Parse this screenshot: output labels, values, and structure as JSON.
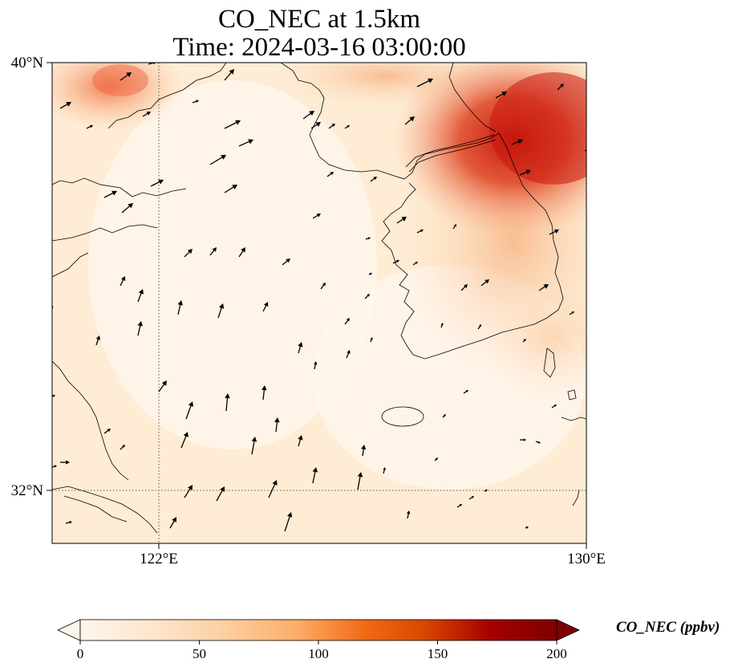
{
  "title_line1": "CO_NEC at 1.5km",
  "title_line2": "Time: 2024-03-16 03:00:00",
  "map": {
    "lat_ticks": [
      "40°N",
      "32°N"
    ],
    "lon_ticks": [
      "122°E",
      "130°E"
    ]
  },
  "colorbar": {
    "label": "CO_NEC (ppbv)",
    "ticks": [
      "0",
      "50",
      "100",
      "150",
      "200"
    ],
    "colors": [
      "#fff5eb",
      "#fee6ce",
      "#fdd0a2",
      "#fdae6b",
      "#f16913",
      "#d94801",
      "#a50000",
      "#7f0000"
    ]
  }
}
